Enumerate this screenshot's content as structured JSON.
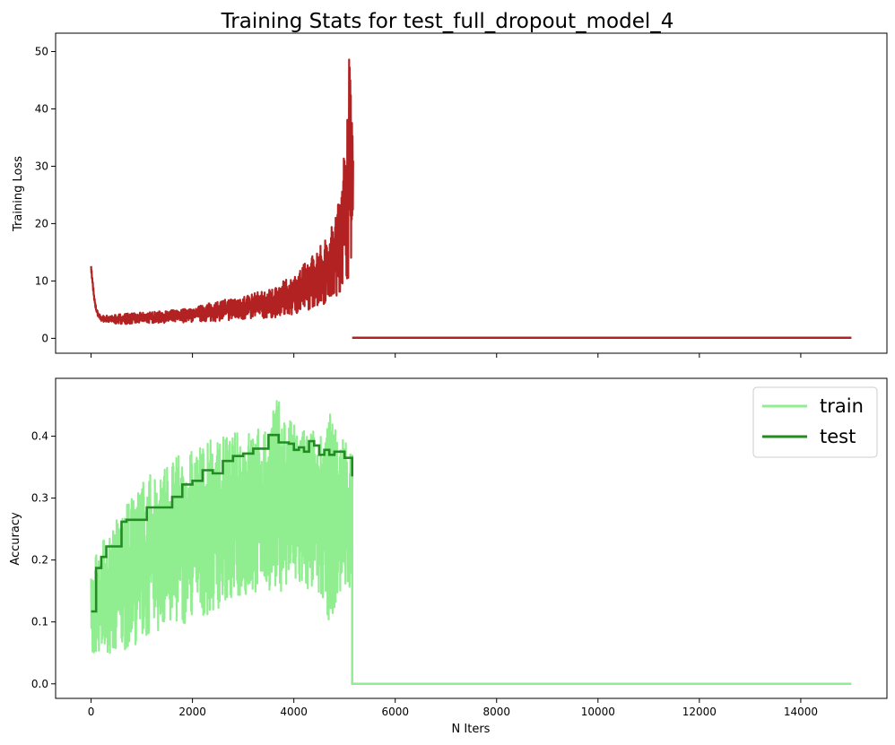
{
  "title": "Training Stats for test_full_dropout_model_4",
  "chart_data": [
    {
      "type": "line",
      "ylabel": "Training Loss",
      "xlabel": "",
      "xlim": [
        -700,
        15700
      ],
      "ylim": [
        -2.6,
        53.2
      ],
      "xticks": [
        0,
        2000,
        4000,
        6000,
        8000,
        10000,
        12000,
        14000
      ],
      "yticks": [
        0,
        10,
        20,
        30,
        40,
        50
      ],
      "ytick_labels": [
        "0",
        "10",
        "20",
        "30",
        "40",
        "50"
      ],
      "grid": false,
      "legend": null,
      "series": [
        {
          "color": "#b22222",
          "envelope": {
            "x": [
              0,
              30,
              60,
              100,
              150,
              200,
              300,
              500,
              800,
              1000,
              1500,
              2000,
              2500,
              3000,
              3500,
              4000,
              4300,
              4600,
              4800,
              4900,
              5000,
              5050,
              5100,
              5130,
              5150,
              5170
            ],
            "lo": [
              12.0,
              9.0,
              6.5,
              4.5,
              3.5,
              3.0,
              2.7,
              2.5,
              2.5,
              2.6,
              2.7,
              2.8,
              3.0,
              3.2,
              3.5,
              4.0,
              5.0,
              6.0,
              7.0,
              8.0,
              9.0,
              10.0,
              11.0,
              13.0,
              15.0,
              17.0
            ],
            "hi": [
              12.6,
              10.5,
              7.5,
              5.5,
              4.3,
              4.0,
              4.0,
              4.2,
              4.4,
              4.5,
              4.8,
              5.4,
              6.5,
              7.5,
              8.5,
              11.0,
              14.0,
              17.0,
              21.0,
              26.0,
              34.0,
              44.0,
              50.5,
              48.0,
              43.0,
              35.0
            ]
          },
          "tail": {
            "x": [
              5150,
              15000
            ],
            "y": [
              0.1,
              0.1
            ]
          }
        }
      ]
    },
    {
      "type": "line",
      "ylabel": "Accuracy",
      "xlabel": "N Iters",
      "xlim": [
        -700,
        15700
      ],
      "ylim": [
        -0.0235,
        0.4935
      ],
      "xticks": [
        0,
        2000,
        4000,
        6000,
        8000,
        10000,
        12000,
        14000
      ],
      "xtick_labels": [
        "0",
        "2000",
        "4000",
        "6000",
        "8000",
        "10000",
        "12000",
        "14000"
      ],
      "yticks": [
        0.0,
        0.1,
        0.2,
        0.3,
        0.4
      ],
      "ytick_labels": [
        "0.0",
        "0.1",
        "0.2",
        "0.3",
        "0.4"
      ],
      "grid": false,
      "legend": {
        "position": "top-right"
      },
      "series": [
        {
          "name": "train",
          "color": "#90ee90",
          "envelope": {
            "x": [
              0,
              100,
              300,
              500,
              800,
              1000,
              1500,
              2000,
              2500,
              3000,
              3500,
              3600,
              4000,
              4500,
              4700,
              5000,
              5150
            ],
            "lo": [
              0.05,
              0.05,
              0.04,
              0.05,
              0.06,
              0.07,
              0.09,
              0.1,
              0.12,
              0.14,
              0.15,
              0.15,
              0.15,
              0.14,
              0.1,
              0.15,
              0.16
            ],
            "hi": [
              0.17,
              0.22,
              0.24,
              0.27,
              0.3,
              0.33,
              0.36,
              0.38,
              0.4,
              0.41,
              0.42,
              0.47,
              0.42,
              0.41,
              0.44,
              0.4,
              0.37
            ]
          },
          "tail": {
            "x": [
              5150,
              5150,
              15000
            ],
            "y": [
              0.37,
              0.0,
              0.0
            ]
          }
        },
        {
          "name": "test",
          "color": "#228b22",
          "step_x": [
            0,
            100,
            200,
            300,
            400,
            600,
            700,
            900,
            1100,
            1400,
            1600,
            1800,
            2000,
            2200,
            2400,
            2600,
            2800,
            3000,
            3200,
            3500,
            3700,
            3900,
            4000,
            4100,
            4200,
            4300,
            4400,
            4500,
            4600,
            4700,
            4800,
            5000,
            5150
          ],
          "step_y": [
            0.117,
            0.187,
            0.205,
            0.222,
            0.222,
            0.262,
            0.265,
            0.265,
            0.285,
            0.285,
            0.302,
            0.322,
            0.328,
            0.345,
            0.34,
            0.36,
            0.368,
            0.372,
            0.38,
            0.402,
            0.39,
            0.388,
            0.378,
            0.382,
            0.375,
            0.392,
            0.385,
            0.37,
            0.378,
            0.37,
            0.375,
            0.365,
            0.335
          ]
        }
      ]
    }
  ]
}
